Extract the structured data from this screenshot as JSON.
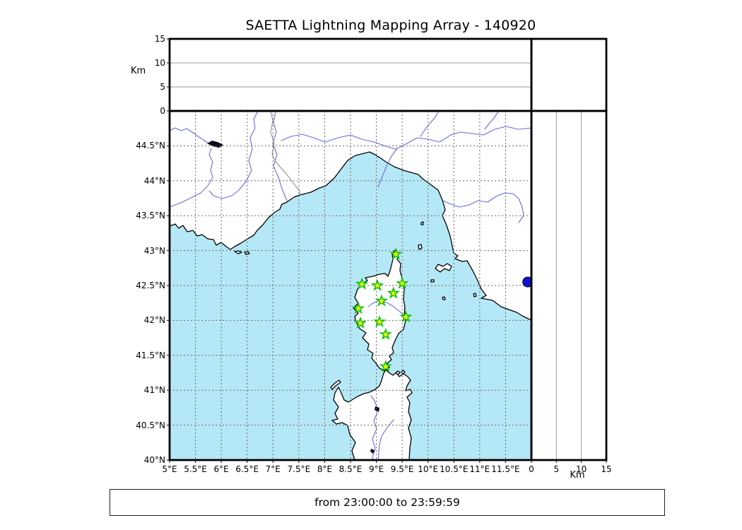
{
  "title": "SAETTA Lightning Mapping Array - 140920",
  "caption": "from 23:00:00 to 23:59:59",
  "colors": {
    "sea": "#b5e8f7",
    "land": "#ffffff",
    "coastline": "#000000",
    "river": "#6a6ae8",
    "grid": "#666666",
    "station_fill": "#ffff00",
    "station_edge": "#00bf00",
    "detection_point": "#1111d6"
  },
  "axes": {
    "altitude_label": "Km",
    "altitude_range": [
      0,
      15
    ],
    "altitude_ticks": [
      0,
      5,
      10,
      15
    ],
    "altitude_gridlines": [
      5,
      10
    ],
    "lon_range": [
      5,
      12
    ],
    "lat_range": [
      40,
      45
    ],
    "grid_step": 0.5,
    "lon_ticks": [
      {
        "value": 5.0,
        "label": "5°E"
      },
      {
        "value": 5.5,
        "label": "5.5°E"
      },
      {
        "value": 6.0,
        "label": "6°E"
      },
      {
        "value": 6.5,
        "label": "6.5°E"
      },
      {
        "value": 7.0,
        "label": "7°E"
      },
      {
        "value": 7.5,
        "label": "7.5°E"
      },
      {
        "value": 8.0,
        "label": "8°E"
      },
      {
        "value": 8.5,
        "label": "8.5°E"
      },
      {
        "value": 9.0,
        "label": "9°E"
      },
      {
        "value": 9.5,
        "label": "9.5°E"
      },
      {
        "value": 10.0,
        "label": "10°E"
      },
      {
        "value": 10.5,
        "label": "10.5°E"
      },
      {
        "value": 11.0,
        "label": "11°E"
      },
      {
        "value": 11.5,
        "label": "11.5°E"
      }
    ],
    "lat_ticks": [
      {
        "value": 44.5,
        "label": "44.5°N"
      },
      {
        "value": 44.0,
        "label": "44°N"
      },
      {
        "value": 43.5,
        "label": "43.5°N"
      },
      {
        "value": 43.0,
        "label": "43°N"
      },
      {
        "value": 42.5,
        "label": "42.5°N"
      },
      {
        "value": 42.0,
        "label": "42°N"
      },
      {
        "value": 41.5,
        "label": "41.5°N"
      },
      {
        "value": 41.0,
        "label": "41°N"
      },
      {
        "value": 40.5,
        "label": "40.5°N"
      },
      {
        "value": 40.0,
        "label": "40°N"
      }
    ]
  },
  "chart_data": {
    "type": "scatter",
    "title": "SAETTA Lightning Mapping Array - 140920",
    "xlabel_units": "°E",
    "ylabel_units": "°N",
    "altitude_units": "Km",
    "legend_position": "none",
    "grid": true,
    "stations": [
      {
        "lon": 9.38,
        "lat": 42.95
      },
      {
        "lon": 8.72,
        "lat": 42.52
      },
      {
        "lon": 9.02,
        "lat": 42.5
      },
      {
        "lon": 9.5,
        "lat": 42.53
      },
      {
        "lon": 9.33,
        "lat": 42.39
      },
      {
        "lon": 9.1,
        "lat": 42.28
      },
      {
        "lon": 8.65,
        "lat": 42.17
      },
      {
        "lon": 9.57,
        "lat": 42.05
      },
      {
        "lon": 8.69,
        "lat": 41.96
      },
      {
        "lon": 9.06,
        "lat": 41.98
      },
      {
        "lon": 9.18,
        "lat": 41.8
      },
      {
        "lon": 9.18,
        "lat": 41.34
      }
    ],
    "detection_point": {
      "lon": 11.93,
      "lat": 42.55
    },
    "time_window": "from 23:00:00 to 23:59:59"
  }
}
